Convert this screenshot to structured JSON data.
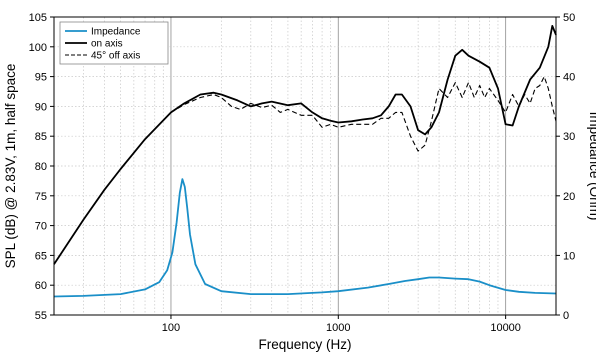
{
  "chart_data": {
    "type": "line",
    "xlabel": "Frequency (Hz)",
    "ylabel": "SPL (dB) @ 2.83V, 1m, half space",
    "y2label": "Impedance (Ohm)",
    "x_scale": "log",
    "xlim": [
      20,
      20000
    ],
    "ylim": [
      55,
      105
    ],
    "y2lim": [
      0,
      50
    ],
    "x_tick_labels": [
      "100",
      "1000",
      "10000"
    ],
    "y_tick_labels": [
      "55",
      "60",
      "65",
      "70",
      "75",
      "80",
      "85",
      "90",
      "95",
      "100",
      "105"
    ],
    "y2_tick_labels": [
      "0",
      "10",
      "20",
      "30",
      "40",
      "50"
    ],
    "grid": true,
    "legend": "top-left",
    "series": [
      {
        "name": "Impedance",
        "axis": "right",
        "color": "#1a8fc8",
        "style": "solid",
        "x": [
          20,
          30,
          50,
          70,
          85,
          95,
          102,
          108,
          113,
          117,
          121,
          125,
          130,
          140,
          160,
          200,
          300,
          500,
          800,
          1000,
          1500,
          2000,
          2500,
          3000,
          3500,
          4000,
          5000,
          6000,
          7000,
          8000,
          10000,
          12000,
          15000,
          20000
        ],
        "values": [
          3.1,
          3.2,
          3.5,
          4.3,
          5.5,
          7.5,
          10.5,
          15.5,
          20.5,
          22.8,
          21.5,
          18,
          13.5,
          8.5,
          5.2,
          4.0,
          3.5,
          3.5,
          3.8,
          4.0,
          4.6,
          5.2,
          5.7,
          6.0,
          6.3,
          6.3,
          6.1,
          6.0,
          5.6,
          5.0,
          4.2,
          3.9,
          3.7,
          3.6
        ]
      },
      {
        "name": "on axis",
        "axis": "left",
        "color": "#000000",
        "style": "solid",
        "x": [
          20,
          30,
          40,
          50,
          70,
          100,
          120,
          150,
          180,
          200,
          250,
          300,
          350,
          400,
          500,
          600,
          700,
          800,
          900,
          1000,
          1200,
          1400,
          1600,
          1800,
          2000,
          2200,
          2400,
          2700,
          3000,
          3300,
          3600,
          4000,
          4500,
          5000,
          5500,
          6000,
          7000,
          8000,
          9000,
          10000,
          11000,
          12000,
          14000,
          16000,
          18000,
          19000,
          20000
        ],
        "values": [
          63.5,
          71,
          76,
          79.5,
          84.5,
          89,
          90.5,
          92,
          92.3,
          92,
          91,
          90,
          90.5,
          90.8,
          90.2,
          90.5,
          89,
          88,
          87.6,
          87.3,
          87.5,
          87.8,
          88,
          88.5,
          90,
          92,
          92,
          90,
          86,
          85.3,
          86.5,
          89,
          94.5,
          98.5,
          99.5,
          98.5,
          97.5,
          96.5,
          93,
          87,
          86.8,
          90,
          94.5,
          96.5,
          100,
          103.5,
          102
        ]
      },
      {
        "name": "45° off axis",
        "axis": "left",
        "color": "#000000",
        "style": "dashed",
        "x": [
          20,
          30,
          40,
          50,
          70,
          100,
          120,
          150,
          180,
          200,
          230,
          260,
          300,
          350,
          400,
          450,
          500,
          600,
          700,
          800,
          900,
          1000,
          1200,
          1400,
          1600,
          1800,
          2000,
          2200,
          2400,
          2700,
          3000,
          3300,
          3600,
          4000,
          4500,
          5000,
          5500,
          6000,
          6500,
          7000,
          7500,
          8000,
          9000,
          10000,
          11000,
          12000,
          13000,
          14000,
          15000,
          16000,
          17000,
          18000,
          19000,
          20000
        ],
        "values": [
          63.5,
          71,
          76,
          79.5,
          84.5,
          89,
          90.3,
          91.5,
          92,
          91.5,
          90,
          89.5,
          90.5,
          89.8,
          90.2,
          89,
          89.5,
          88.5,
          88.5,
          86.5,
          87,
          86.5,
          87,
          87,
          87,
          88,
          88,
          89,
          89,
          85,
          82.5,
          83.5,
          87.5,
          93,
          91.5,
          94,
          91.5,
          94,
          91.5,
          93.5,
          91.5,
          93,
          91,
          89,
          92,
          90,
          92,
          90.5,
          93,
          93.5,
          95,
          93,
          90,
          87.5
        ]
      }
    ]
  }
}
